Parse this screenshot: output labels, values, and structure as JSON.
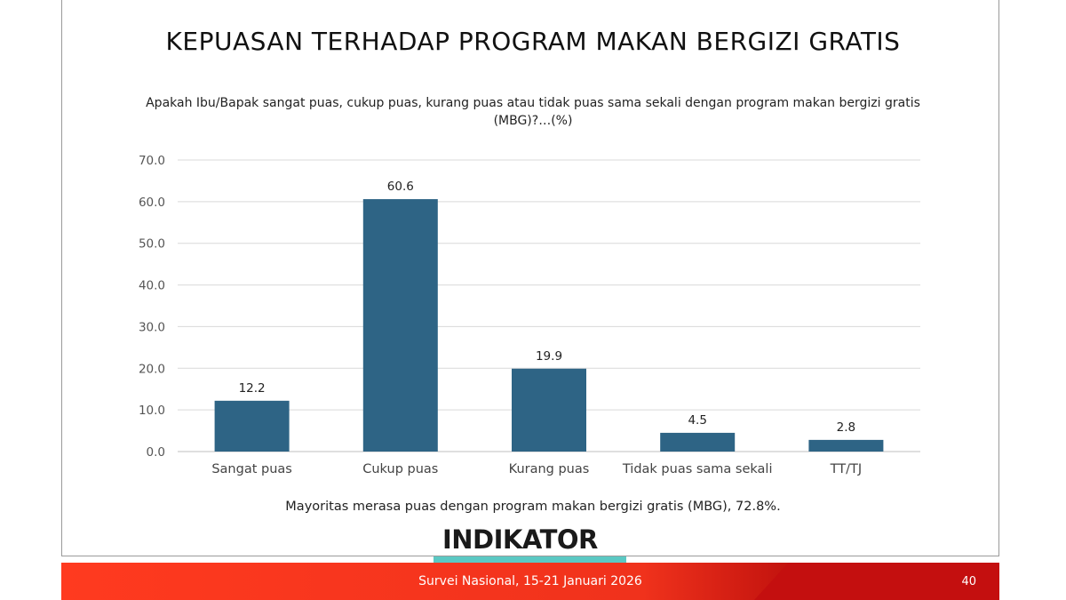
{
  "slide": {
    "title": "KEPUASAN TERHADAP PROGRAM MAKAN BERGIZI GRATIS",
    "subtitle": "Apakah Ibu/Bapak sangat puas, cukup puas, kurang puas atau tidak puas sama sekali dengan program makan bergizi gratis (MBG)?…(%)",
    "caption": "Mayoritas merasa puas dengan program makan bergizi gratis (MBG), 72.8%.",
    "logo_text": "INDIKATOR",
    "footer_text": "Survei Nasional, 15-21 Januari 2026",
    "page_number": "40"
  },
  "colors": {
    "bar": "#2e6485",
    "grid": "#d9d9d9",
    "footer_red": "#f0321c",
    "footer_dark": "#c40f0f",
    "logo_accent": "#5bc8c3"
  },
  "chart_data": {
    "type": "bar",
    "title": "KEPUASAN TERHADAP PROGRAM MAKAN BERGIZI GRATIS",
    "categories": [
      "Sangat puas",
      "Cukup puas",
      "Kurang puas",
      "Tidak puas sama sekali",
      "TT/TJ"
    ],
    "values": [
      12.2,
      60.6,
      19.9,
      4.5,
      2.8
    ],
    "data_labels": [
      "12.2",
      "60.6",
      "19.9",
      "4.5",
      "2.8"
    ],
    "ylim": [
      0,
      70
    ],
    "yticks": [
      "0.0",
      "10.0",
      "20.0",
      "30.0",
      "40.0",
      "50.0",
      "60.0",
      "70.0"
    ],
    "xlabel": "",
    "ylabel": "",
    "grid": true,
    "legend": "none"
  }
}
